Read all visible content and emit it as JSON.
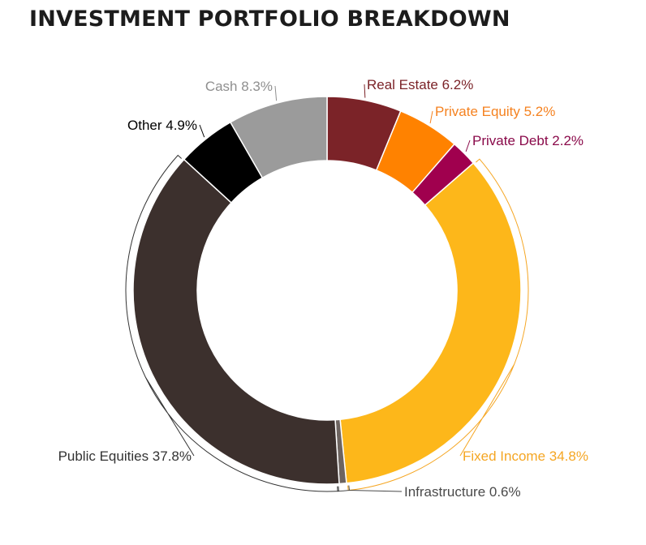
{
  "chart_data": {
    "type": "pie",
    "subtype": "donut",
    "title": "INVESTMENT PORTFOLIO BREAKDOWN",
    "slices": [
      {
        "name": "Real Estate",
        "value": 6.2,
        "label": "Real Estate 6.2%",
        "color": "#7b2328",
        "label_color": "#7b2328"
      },
      {
        "name": "Private Equity",
        "value": 5.2,
        "label": "Private Equity 5.2%",
        "color": "#ff8200",
        "label_color": "#f58220"
      },
      {
        "name": "Private Debt",
        "value": 2.2,
        "label": "Private Debt 2.2%",
        "color": "#a0004e",
        "label_color": "#8a0a4a"
      },
      {
        "name": "Fixed Income",
        "value": 34.8,
        "label": "Fixed Income 34.8%",
        "color": "#fdb71a",
        "label_color": "#f5a623"
      },
      {
        "name": "Infrastructure",
        "value": 0.6,
        "label": "Infrastructure 0.6%",
        "color": "#6d6460",
        "label_color": "#4a4a4a"
      },
      {
        "name": "Public Equities",
        "value": 37.8,
        "label": "Public Equities 37.8%",
        "color": "#3c302d",
        "label_color": "#333333"
      },
      {
        "name": "Other",
        "value": 4.9,
        "label": "Other 4.9%",
        "color": "#000000",
        "label_color": "#000000"
      },
      {
        "name": "Cash",
        "value": 8.3,
        "label": "Cash 8.3%",
        "color": "#9b9b9b",
        "label_color": "#8f8f8f"
      }
    ],
    "legend": "none"
  }
}
